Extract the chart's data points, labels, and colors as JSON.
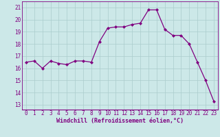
{
  "x": [
    0,
    1,
    2,
    3,
    4,
    5,
    6,
    7,
    8,
    9,
    10,
    11,
    12,
    13,
    14,
    15,
    16,
    17,
    18,
    19,
    20,
    21,
    22,
    23
  ],
  "y": [
    16.5,
    16.6,
    16.0,
    16.6,
    16.4,
    16.3,
    16.6,
    16.6,
    16.5,
    18.2,
    19.3,
    19.4,
    19.4,
    19.6,
    19.7,
    20.8,
    20.8,
    19.2,
    18.7,
    18.7,
    18.0,
    16.5,
    15.0,
    13.3
  ],
  "line_color": "#800080",
  "marker": "D",
  "marker_size": 2.0,
  "bg_color": "#cce8e8",
  "grid_color": "#aacccc",
  "xlabel": "Windchill (Refroidissement éolien,°C)",
  "ylabel_ticks": [
    13,
    14,
    15,
    16,
    17,
    18,
    19,
    20,
    21
  ],
  "xlabel_ticks": [
    0,
    1,
    2,
    3,
    4,
    5,
    6,
    7,
    8,
    9,
    10,
    11,
    12,
    13,
    14,
    15,
    16,
    17,
    18,
    19,
    20,
    21,
    22,
    23
  ],
  "ylim": [
    12.6,
    21.5
  ],
  "xlim": [
    -0.5,
    23.5
  ],
  "font_color": "#800080",
  "tick_fontsize": 5.5,
  "xlabel_fontsize": 6.0,
  "linewidth": 0.9
}
